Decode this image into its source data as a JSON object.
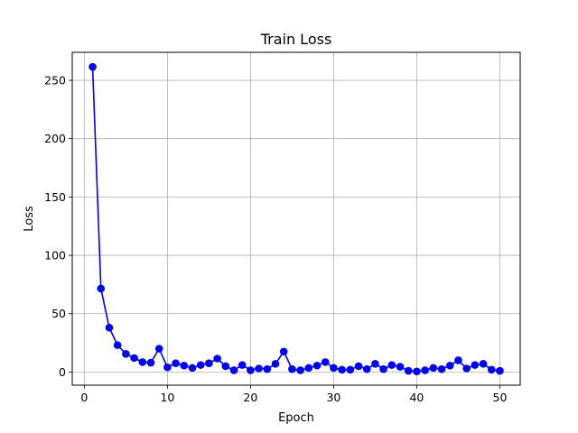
{
  "chart_data": {
    "type": "line",
    "title": "Train Loss",
    "xlabel": "Epoch",
    "ylabel": "Loss",
    "xlim": [
      -1.45,
      52.45
    ],
    "ylim": [
      -11.3,
      274.0
    ],
    "xticks": [
      0,
      10,
      20,
      30,
      40,
      50
    ],
    "yticks": [
      0,
      50,
      100,
      150,
      200,
      250
    ],
    "grid": true,
    "legend": false,
    "series": [
      {
        "color": "#0000ff",
        "marker": "circle",
        "x": [
          1,
          2,
          3,
          4,
          5,
          6,
          7,
          8,
          9,
          10,
          11,
          12,
          13,
          14,
          15,
          16,
          17,
          18,
          19,
          20,
          21,
          22,
          23,
          24,
          25,
          26,
          27,
          28,
          29,
          30,
          31,
          32,
          33,
          34,
          35,
          36,
          37,
          38,
          39,
          40,
          41,
          42,
          43,
          44,
          45,
          46,
          47,
          48,
          49,
          50
        ],
        "y": [
          261.5,
          71.5,
          38,
          23,
          15.5,
          12,
          8.5,
          8,
          20,
          4,
          7.5,
          5.5,
          3.5,
          6,
          7.5,
          11.5,
          5,
          1.5,
          6,
          1.5,
          3,
          2.5,
          7,
          17.5,
          2.5,
          1.5,
          3.5,
          5.5,
          8.5,
          3.5,
          2,
          2,
          5,
          2.5,
          7,
          2.5,
          6,
          4.5,
          1,
          0.5,
          1.5,
          3.5,
          2.5,
          5.5,
          10,
          3,
          6,
          7,
          2,
          1
        ]
      }
    ]
  }
}
